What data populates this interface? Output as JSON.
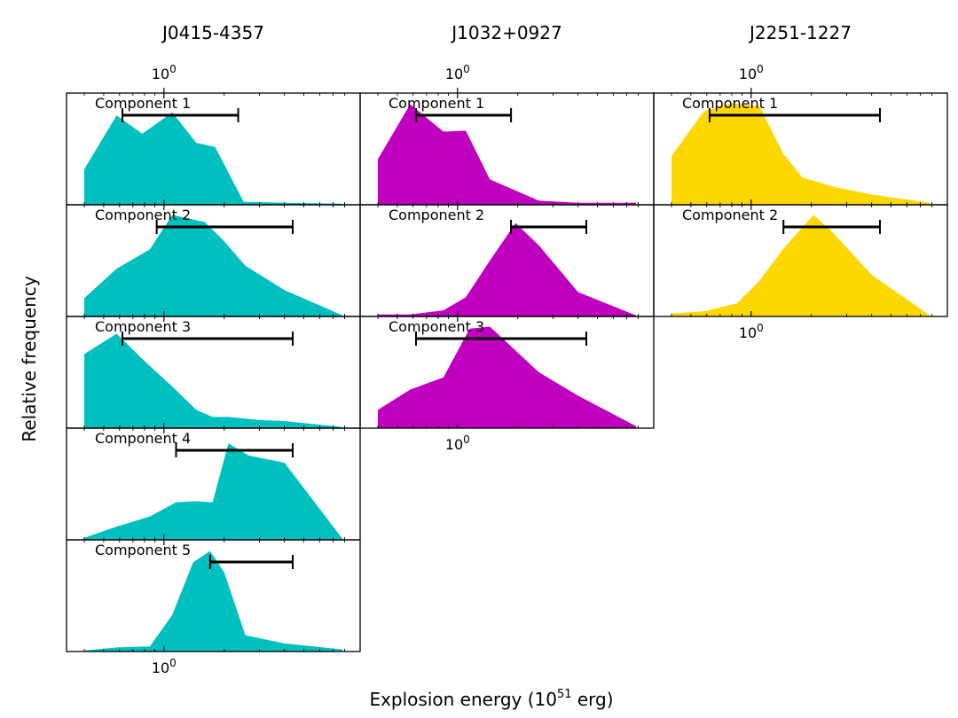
{
  "figure": {
    "xlabel": "Explosion energy (10",
    "xlabel_sup": "51",
    "xlabel_suffix": " erg)",
    "ylabel": "Relative frequency",
    "tick_label_base": "10",
    "tick_label_exp": "0"
  },
  "chart_data": [
    {
      "type": "area",
      "column_title": "J0415-4357",
      "color": "#00BFBF",
      "xscale": "log",
      "xlim": [
        0.38,
        8.2
      ],
      "ylim": [
        0,
        1.1
      ],
      "shared_top_tick": true,
      "components": [
        {
          "label": "Component 1",
          "x": [
            0.4,
            0.58,
            0.78,
            1.1,
            1.45,
            1.8,
            2.5,
            4.0,
            7.8
          ],
          "y": [
            0.35,
            0.88,
            0.7,
            0.91,
            0.61,
            0.57,
            0.03,
            0.02,
            0.01
          ],
          "interval": [
            0.62,
            2.35
          ]
        },
        {
          "label": "Component 2",
          "x": [
            0.4,
            0.58,
            0.85,
            1.1,
            1.6,
            2.0,
            2.55,
            4.0,
            7.8
          ],
          "y": [
            0.18,
            0.47,
            0.66,
            1.0,
            0.93,
            0.74,
            0.5,
            0.26,
            0.01
          ],
          "interval": [
            0.92,
            4.4
          ]
        },
        {
          "label": "Component 3",
          "x": [
            0.4,
            0.58,
            0.8,
            1.1,
            1.45,
            1.75,
            2.1,
            3.0,
            4.0,
            7.8
          ],
          "y": [
            0.73,
            0.93,
            0.66,
            0.41,
            0.18,
            0.11,
            0.11,
            0.08,
            0.07,
            0.01
          ],
          "interval": [
            0.62,
            4.4
          ]
        },
        {
          "label": "Component 4",
          "x": [
            0.4,
            0.58,
            0.85,
            1.15,
            1.45,
            1.75,
            2.1,
            2.65,
            4.0,
            7.8
          ],
          "y": [
            0.02,
            0.13,
            0.23,
            0.37,
            0.38,
            0.37,
            0.95,
            0.83,
            0.76,
            0.01
          ],
          "interval": [
            1.15,
            4.4
          ]
        },
        {
          "label": "Component 5",
          "x": [
            0.4,
            0.58,
            0.85,
            1.1,
            1.4,
            1.7,
            2.0,
            2.55,
            4.0,
            7.8
          ],
          "y": [
            0.01,
            0.04,
            0.05,
            0.36,
            0.88,
            0.99,
            0.78,
            0.16,
            0.08,
            0.02
          ],
          "interval": [
            1.7,
            4.4
          ]
        }
      ]
    },
    {
      "type": "area",
      "column_title": "J1032+0927",
      "color": "#BF00BF",
      "xscale": "log",
      "xlim": [
        0.38,
        8.2
      ],
      "ylim": [
        0,
        1.1
      ],
      "shared_top_tick": true,
      "components": [
        {
          "label": "Component 1",
          "x": [
            0.4,
            0.58,
            0.85,
            1.1,
            1.45,
            2.55,
            4.0,
            7.8
          ],
          "y": [
            0.45,
            0.99,
            0.72,
            0.73,
            0.25,
            0.04,
            0.02,
            0.02
          ],
          "interval": [
            0.62,
            1.85
          ]
        },
        {
          "label": "Component 2",
          "x": [
            0.4,
            0.58,
            0.85,
            1.1,
            1.45,
            1.95,
            2.55,
            4.0,
            7.8
          ],
          "y": [
            0.02,
            0.02,
            0.06,
            0.19,
            0.55,
            0.92,
            0.7,
            0.24,
            0.01
          ],
          "interval": [
            1.85,
            4.4
          ]
        },
        {
          "label": "Component 3",
          "x": [
            0.4,
            0.58,
            0.85,
            1.15,
            1.45,
            1.75,
            2.55,
            4.0,
            7.8
          ],
          "y": [
            0.18,
            0.38,
            0.5,
            0.98,
            1.0,
            0.85,
            0.55,
            0.32,
            0.02
          ],
          "interval": [
            0.62,
            4.4
          ]
        }
      ]
    },
    {
      "type": "area",
      "column_title": "J2251-1227",
      "color": "#FFD700",
      "xscale": "log",
      "xlim": [
        0.38,
        8.2
      ],
      "ylim": [
        0,
        1.1
      ],
      "shared_top_tick": true,
      "components": [
        {
          "label": "Component 1",
          "x": [
            0.4,
            0.58,
            0.8,
            1.1,
            1.45,
            1.8,
            2.55,
            4.0,
            7.8
          ],
          "y": [
            0.48,
            0.92,
            1.0,
            0.97,
            0.5,
            0.27,
            0.18,
            0.1,
            0.02
          ],
          "interval": [
            0.62,
            4.4
          ]
        },
        {
          "label": "Component 2",
          "x": [
            0.4,
            0.58,
            0.85,
            1.1,
            1.45,
            2.05,
            2.55,
            4.0,
            7.8
          ],
          "y": [
            0.03,
            0.05,
            0.13,
            0.35,
            0.67,
            1.0,
            0.83,
            0.41,
            0.01
          ],
          "interval": [
            1.45,
            4.4
          ]
        }
      ]
    }
  ]
}
